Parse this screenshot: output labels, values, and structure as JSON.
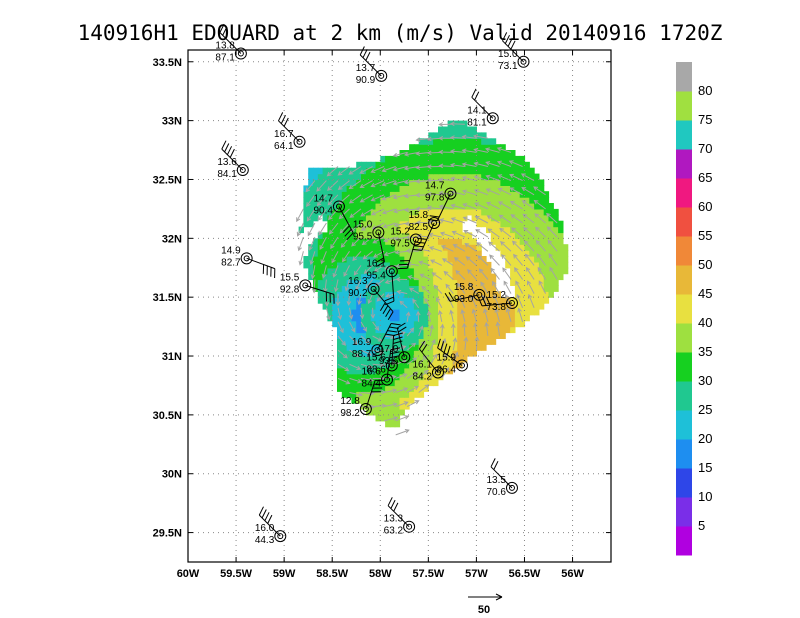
{
  "chart_data": {
    "type": "heatmap",
    "title": "140916H1 EDOUARD at 2 km (m/s) Valid 20140916 1720Z",
    "xlabel": "",
    "ylabel": "",
    "xlim": [
      -60.0,
      -55.6
    ],
    "ylim": [
      29.25,
      33.6
    ],
    "x_ticks": [
      {
        "value": -60.0,
        "label": "60W"
      },
      {
        "value": -59.5,
        "label": "59.5W"
      },
      {
        "value": -59.0,
        "label": "59W"
      },
      {
        "value": -58.5,
        "label": "58.5W"
      },
      {
        "value": -58.0,
        "label": "58W"
      },
      {
        "value": -57.5,
        "label": "57.5W"
      },
      {
        "value": -57.0,
        "label": "57W"
      },
      {
        "value": -56.5,
        "label": "56.5W"
      },
      {
        "value": -56.0,
        "label": "56W"
      }
    ],
    "y_ticks": [
      {
        "value": 29.5,
        "label": "29.5N"
      },
      {
        "value": 30.0,
        "label": "30N"
      },
      {
        "value": 30.5,
        "label": "30.5N"
      },
      {
        "value": 31.0,
        "label": "31N"
      },
      {
        "value": 31.5,
        "label": "31.5N"
      },
      {
        "value": 32.0,
        "label": "32N"
      },
      {
        "value": 32.5,
        "label": "32.5N"
      },
      {
        "value": 33.0,
        "label": "33N"
      },
      {
        "value": 33.5,
        "label": "33.5N"
      }
    ],
    "grid": true,
    "colorbar": {
      "labels": [
        "5",
        "10",
        "15",
        "20",
        "25",
        "30",
        "35",
        "40",
        "45",
        "50",
        "55",
        "60",
        "65",
        "70",
        "75",
        "80"
      ],
      "colors": [
        "#b000e0",
        "#7a2ee8",
        "#2e46e8",
        "#1e8ef0",
        "#1ec0d8",
        "#20c890",
        "#16d020",
        "#9ee040",
        "#e8e040",
        "#e8b838",
        "#f08838",
        "#f05040",
        "#f01880",
        "#b018c0",
        "#20c8c0",
        "#a0e040",
        "#a8a8a8"
      ]
    },
    "wind_field": {
      "center": [
        -57.85,
        31.35
      ],
      "region": [
        [
          -58.75,
          32.6
        ],
        [
          -58.3,
          32.62
        ],
        [
          -57.8,
          32.72
        ],
        [
          -57.2,
          33.02
        ],
        [
          -56.95,
          32.9
        ],
        [
          -56.55,
          32.7
        ],
        [
          -56.3,
          32.45
        ],
        [
          -56.1,
          32.1
        ],
        [
          -56.05,
          31.75
        ],
        [
          -56.25,
          31.45
        ],
        [
          -56.55,
          31.25
        ],
        [
          -56.95,
          31.05
        ],
        [
          -57.3,
          30.85
        ],
        [
          -57.75,
          30.55
        ],
        [
          -57.85,
          30.3
        ],
        [
          -58.0,
          30.45
        ],
        [
          -58.45,
          30.7
        ],
        [
          -58.45,
          31.2
        ],
        [
          -58.65,
          31.5
        ],
        [
          -58.85,
          31.9
        ],
        [
          -58.8,
          32.3
        ]
      ],
      "max_wind_ms": 80,
      "vector_scale_label": "50"
    },
    "stations": [
      {
        "lon": -59.45,
        "lat": 33.57,
        "wind": 13.8,
        "value": 87.1
      },
      {
        "lon": -57.99,
        "lat": 33.38,
        "wind": 13.7,
        "value": 90.9
      },
      {
        "lon": -56.51,
        "lat": 33.5,
        "wind": 15.0,
        "value": 73.1
      },
      {
        "lon": -56.83,
        "lat": 33.02,
        "wind": 14.1,
        "value": 81.1
      },
      {
        "lon": -58.84,
        "lat": 32.82,
        "wind": 16.7,
        "value": 64.1
      },
      {
        "lon": -59.43,
        "lat": 32.58,
        "wind": 13.6,
        "value": 84.1
      },
      {
        "lon": -57.27,
        "lat": 32.38,
        "wind": 14.7,
        "value": 97.8
      },
      {
        "lon": -58.43,
        "lat": 32.27,
        "wind": 14.7,
        "value": 90.4
      },
      {
        "lon": -57.44,
        "lat": 32.13,
        "wind": 15.8,
        "value": 82.5
      },
      {
        "lon": -58.02,
        "lat": 32.05,
        "wind": 15.0,
        "value": 95.5
      },
      {
        "lon": -57.63,
        "lat": 31.99,
        "wind": 15.2,
        "value": 97.5
      },
      {
        "lon": -59.39,
        "lat": 31.83,
        "wind": 14.9,
        "value": 82.7
      },
      {
        "lon": -57.88,
        "lat": 31.72,
        "wind": 16.1,
        "value": 95.4
      },
      {
        "lon": -58.78,
        "lat": 31.6,
        "wind": 15.5,
        "value": 92.8
      },
      {
        "lon": -58.07,
        "lat": 31.57,
        "wind": 16.3,
        "value": 90.2
      },
      {
        "lon": -56.97,
        "lat": 31.52,
        "wind": 15.8,
        "value": 93.0
      },
      {
        "lon": -56.63,
        "lat": 31.45,
        "wind": 15.2,
        "value": 73.8
      },
      {
        "lon": -58.03,
        "lat": 31.05,
        "wind": 16.9,
        "value": 88.7
      },
      {
        "lon": -57.75,
        "lat": 30.99,
        "wind": 17.0,
        "value": 93.6
      },
      {
        "lon": -57.88,
        "lat": 30.92,
        "wind": 15.6,
        "value": 88.6
      },
      {
        "lon": -57.15,
        "lat": 30.92,
        "wind": 15.9,
        "value": 86.4
      },
      {
        "lon": -57.4,
        "lat": 30.86,
        "wind": 16.1,
        "value": 84.2
      },
      {
        "lon": -57.93,
        "lat": 30.8,
        "wind": 16.6,
        "value": 84.4
      },
      {
        "lon": -58.15,
        "lat": 30.55,
        "wind": 12.8,
        "value": 98.2
      },
      {
        "lon": -56.63,
        "lat": 29.88,
        "wind": 13.5,
        "value": 70.6
      },
      {
        "lon": -57.7,
        "lat": 29.55,
        "wind": 13.3,
        "value": 63.2
      },
      {
        "lon": -59.04,
        "lat": 29.47,
        "wind": 16.0,
        "value": 44.3
      }
    ]
  }
}
